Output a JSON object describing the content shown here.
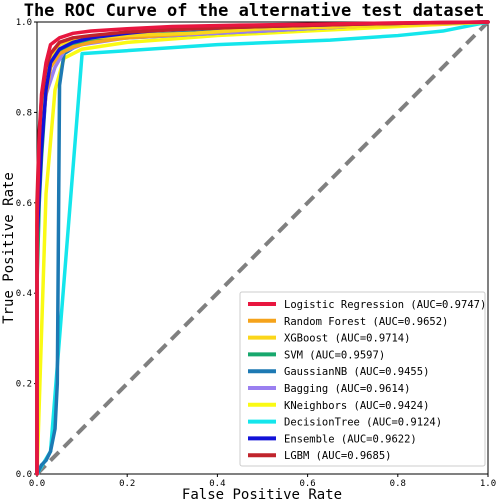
{
  "chart_data": {
    "type": "line",
    "title": "The ROC Curve of the alternative test dataset",
    "xlabel": "False Positive Rate",
    "ylabel": "True Positive Rate",
    "xlim": [
      0,
      1
    ],
    "ylim": [
      0,
      1
    ],
    "x_ticks": [
      "0.0",
      "0.2",
      "0.4",
      "0.6",
      "0.8",
      "1.0"
    ],
    "y_ticks": [
      "0.0",
      "0.2",
      "0.4",
      "0.6",
      "0.8",
      "1.0"
    ],
    "grid": false,
    "legend_position": "bottom-right",
    "diagonal": {
      "x": [
        0,
        1
      ],
      "y": [
        0,
        1
      ],
      "color": "#808080",
      "style": "dashed"
    },
    "series": [
      {
        "name": "Logistic Regression (AUC=0.9747)",
        "color": "#e8163f",
        "x": [
          0,
          0,
          0.005,
          0.01,
          0.02,
          0.03,
          0.05,
          0.08,
          0.12,
          0.2,
          0.3,
          0.45,
          0.6,
          0.8,
          1.0
        ],
        "y": [
          0,
          0.55,
          0.74,
          0.84,
          0.91,
          0.95,
          0.965,
          0.975,
          0.98,
          0.985,
          0.99,
          0.993,
          0.995,
          0.998,
          1.0
        ]
      },
      {
        "name": "Random Forest (AUC=0.9652)",
        "color": "#f5a31b",
        "x": [
          0,
          0,
          0.01,
          0.02,
          0.03,
          0.05,
          0.08,
          0.12,
          0.2,
          0.35,
          0.5,
          0.7,
          0.85,
          1.0
        ],
        "y": [
          0,
          0.58,
          0.75,
          0.84,
          0.9,
          0.93,
          0.945,
          0.955,
          0.965,
          0.975,
          0.985,
          0.99,
          0.995,
          1.0
        ]
      },
      {
        "name": "XGBoost (AUC=0.9714)",
        "color": "#fbd61a",
        "x": [
          0,
          0,
          0.01,
          0.02,
          0.03,
          0.05,
          0.08,
          0.12,
          0.2,
          0.35,
          0.5,
          0.7,
          0.9,
          1.0
        ],
        "y": [
          0,
          0.6,
          0.78,
          0.86,
          0.92,
          0.95,
          0.96,
          0.965,
          0.97,
          0.975,
          0.985,
          0.99,
          0.995,
          1.0
        ]
      },
      {
        "name": "SVM (AUC=0.9597)",
        "color": "#17a86d",
        "x": [
          0,
          0,
          0.005,
          0.01,
          0.02,
          0.03,
          0.04,
          0.06,
          0.1,
          0.2,
          0.4,
          0.6,
          0.8,
          1.0
        ],
        "y": [
          0,
          0.42,
          0.6,
          0.7,
          0.85,
          0.9,
          0.92,
          0.94,
          0.955,
          0.965,
          0.975,
          0.985,
          0.995,
          1.0
        ]
      },
      {
        "name": "GaussianNB (AUC=0.9455)",
        "color": "#1d79b3",
        "x": [
          0,
          0.01,
          0.02,
          0.03,
          0.04,
          0.045,
          0.05,
          0.06,
          0.1,
          0.2,
          0.4,
          0.6,
          0.8,
          1.0
        ],
        "y": [
          0,
          0.02,
          0.03,
          0.05,
          0.1,
          0.2,
          0.86,
          0.93,
          0.955,
          0.97,
          0.98,
          0.99,
          0.995,
          1.0
        ]
      },
      {
        "name": "Bagging (AUC=0.9614)",
        "color": "#9a7ff0",
        "x": [
          0,
          0,
          0.01,
          0.02,
          0.04,
          0.06,
          0.1,
          0.2,
          0.4,
          0.6,
          0.8,
          1.0
        ],
        "y": [
          0,
          0.55,
          0.74,
          0.84,
          0.9,
          0.935,
          0.95,
          0.965,
          0.975,
          0.985,
          0.995,
          1.0
        ]
      },
      {
        "name": "KNeighbors (AUC=0.9424)",
        "color": "#fafa14",
        "x": [
          0,
          0.02,
          0.04,
          0.06,
          0.1,
          0.2,
          0.4,
          0.6,
          0.8,
          1.0
        ],
        "y": [
          0,
          0.62,
          0.85,
          0.92,
          0.94,
          0.955,
          0.97,
          0.98,
          0.99,
          1.0
        ]
      },
      {
        "name": "DecisionTree (AUC=0.9124)",
        "color": "#14e6ec",
        "x": [
          0,
          0.03,
          0.1,
          0.4,
          0.65,
          0.8,
          0.9,
          1.0
        ],
        "y": [
          0,
          0.05,
          0.93,
          0.95,
          0.96,
          0.97,
          0.98,
          1.0
        ]
      },
      {
        "name": "Ensemble (AUC=0.9622)",
        "color": "#1212d8",
        "x": [
          0,
          0,
          0.01,
          0.02,
          0.03,
          0.05,
          0.08,
          0.12,
          0.2,
          0.3,
          0.5,
          0.7,
          0.85,
          1.0
        ],
        "y": [
          0,
          0.52,
          0.72,
          0.85,
          0.91,
          0.94,
          0.955,
          0.965,
          0.975,
          0.985,
          0.99,
          0.995,
          0.998,
          1.0
        ]
      },
      {
        "name": "LGBM (AUC=0.9685)",
        "color": "#c0242c",
        "x": [
          0,
          0,
          0.005,
          0.01,
          0.02,
          0.03,
          0.05,
          0.08,
          0.12,
          0.2,
          0.35,
          0.5,
          0.7,
          0.85,
          1.0
        ],
        "y": [
          0,
          0.6,
          0.76,
          0.83,
          0.9,
          0.93,
          0.955,
          0.965,
          0.97,
          0.978,
          0.985,
          0.99,
          0.995,
          0.998,
          1.0
        ]
      }
    ]
  }
}
